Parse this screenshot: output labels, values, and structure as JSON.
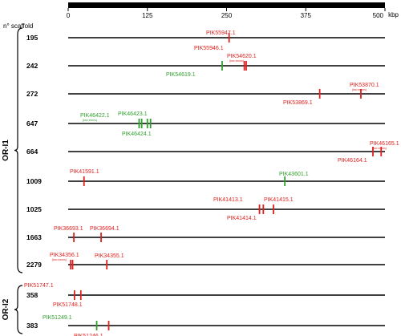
{
  "axis": {
    "unit": "kbp",
    "ticks": [
      "0",
      "125",
      "250",
      "375",
      "500"
    ]
  },
  "scaffold_header": "n° scaffold",
  "groups": [
    {
      "label": "OR-I1",
      "first": 0,
      "last": 8
    },
    {
      "label": "OR-I2",
      "first": 9,
      "last": 10
    }
  ],
  "colors": {
    "red": "#e0201e",
    "green": "#2fa02c",
    "black": "#000000"
  },
  "rows": [
    {
      "scaffold": "195",
      "len": 500,
      "genes": [
        {
          "kb": 254,
          "c": "red",
          "label": "PIK55947.1",
          "lx": 257,
          "ly": -4
        },
        {
          "kb": 254,
          "c": "red",
          "label": "PIK55946.1",
          "lx": 242,
          "ly": 15,
          "noline": true
        }
      ]
    },
    {
      "scaffold": "242",
      "len": 500,
      "genes": [
        {
          "kb": 278,
          "c": "red",
          "label": "PIK54620.1",
          "lx": 283,
          "ly": -10,
          "note": "(two exons)"
        },
        {
          "kb": 281,
          "c": "red",
          "noline": false
        },
        {
          "kb": 243,
          "c": "green",
          "label": "PIK54619.1",
          "lx": 207,
          "ly": 13
        }
      ]
    },
    {
      "scaffold": "272",
      "len": 500,
      "genes": [
        {
          "kb": 462,
          "c": "red",
          "label": "PIK53870.1",
          "lx": 436,
          "ly": -9,
          "note": "(two exons)"
        },
        {
          "kb": 397,
          "c": "red",
          "label": "PIK53869.1",
          "lx": 353,
          "ly": 13
        }
      ]
    },
    {
      "scaffold": "647",
      "len": 500,
      "genes": [
        {
          "kb": 112,
          "c": "green",
          "label": "PIK46422.1",
          "lx": 100,
          "ly": -8,
          "note": "(two exons)"
        },
        {
          "kb": 116,
          "c": "green"
        },
        {
          "kb": 125,
          "c": "green",
          "label": "PIK46423.1",
          "lx": 147,
          "ly": -10
        },
        {
          "kb": 130,
          "c": "green",
          "label": "PIK46424.1",
          "lx": 152,
          "ly": 15
        }
      ]
    },
    {
      "scaffold": "664",
      "len": 500,
      "genes": [
        {
          "kb": 494,
          "c": "red",
          "label": "PIK46165.1",
          "lx": 461,
          "ly": -8,
          "note": "(two exons)"
        },
        {
          "kb": 481,
          "c": "red",
          "label": "PIK46164.1",
          "lx": 421,
          "ly": 13
        }
      ]
    },
    {
      "scaffold": "1009",
      "len": 500,
      "genes": [
        {
          "kb": 25,
          "c": "red",
          "label": "PIK41591.1",
          "lx": 87,
          "ly": -10
        },
        {
          "kb": 342,
          "c": "green",
          "label": "PIK43601.1",
          "lx": 348,
          "ly": -7
        }
      ]
    },
    {
      "scaffold": "1025",
      "len": 500,
      "genes": [
        {
          "kb": 302,
          "c": "red",
          "label": "PIK41413.1",
          "lx": 266,
          "ly": -10
        },
        {
          "kb": 308,
          "c": "red",
          "label": "PIK41414.1",
          "lx": 283,
          "ly": 13
        },
        {
          "kb": 324,
          "c": "red",
          "label": "PIK41415.1",
          "lx": 329,
          "ly": -10
        }
      ]
    },
    {
      "scaffold": "1663",
      "len": 500,
      "genes": [
        {
          "kb": 9,
          "c": "red",
          "label": "PIK36693.1",
          "lx": 67,
          "ly": -9
        },
        {
          "kb": 52,
          "c": "red",
          "label": "PIK36694.1",
          "lx": 112,
          "ly": -9
        }
      ]
    },
    {
      "scaffold": "2279",
      "len": 500,
      "genes": [
        {
          "kb": 4,
          "c": "red",
          "label": "PIK34356.1",
          "lx": 62,
          "ly": -10,
          "note": "(two exons)"
        },
        {
          "kb": 7,
          "c": "red"
        },
        {
          "kb": 61,
          "c": "red",
          "label": "PIK34355.1",
          "lx": 118,
          "ly": -9
        }
      ]
    },
    {
      "scaffold": "358",
      "len": 500,
      "genes": [
        {
          "kb": 10,
          "c": "red",
          "label": "PIK51747.1",
          "lx": 30,
          "ly": -10
        },
        {
          "kb": 20,
          "c": "red",
          "label": "PIK51748.1",
          "lx": 66,
          "ly": 14
        }
      ]
    },
    {
      "scaffold": "383",
      "len": 500,
      "genes": [
        {
          "kb": 45,
          "c": "green",
          "label": "PIK51249.1",
          "lx": 53,
          "ly": -8
        },
        {
          "kb": 64,
          "c": "red",
          "label": "PIK51246.1",
          "lx": 92,
          "ly": 15
        }
      ]
    }
  ]
}
